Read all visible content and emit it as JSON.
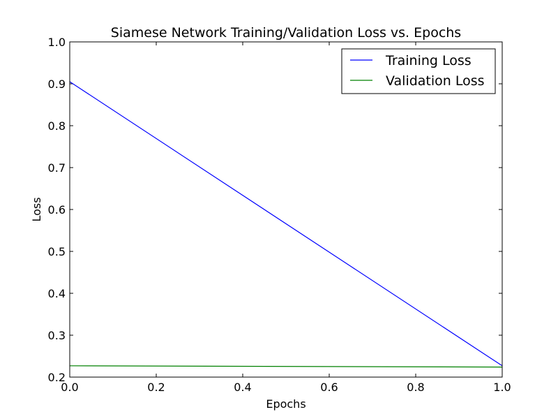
{
  "chart_data": {
    "type": "line",
    "title": "Siamese Network Training/Validation Loss vs. Epochs",
    "xlabel": "Epochs",
    "ylabel": "Loss",
    "xlim": [
      0.0,
      1.0
    ],
    "ylim": [
      0.2,
      1.0
    ],
    "x_ticks": [
      "0.0",
      "0.2",
      "0.4",
      "0.6",
      "0.8",
      "1.0"
    ],
    "y_ticks": [
      "0.2",
      "0.3",
      "0.4",
      "0.5",
      "0.6",
      "0.7",
      "0.8",
      "0.9",
      "1.0"
    ],
    "grid": false,
    "legend_position": "top-right",
    "series": [
      {
        "name": "Training Loss",
        "color": "#0000ff",
        "x": [
          0.0,
          1.0
        ],
        "y": [
          0.905,
          0.227
        ]
      },
      {
        "name": "Validation Loss",
        "color": "#008000",
        "x": [
          0.0,
          1.0
        ],
        "y": [
          0.227,
          0.224
        ]
      }
    ]
  }
}
